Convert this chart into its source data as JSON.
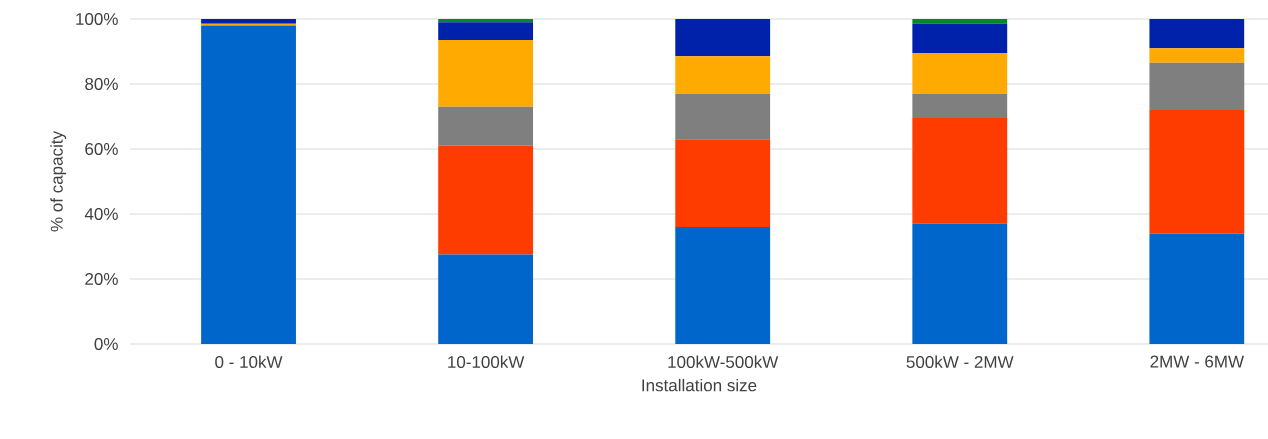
{
  "chart_data": {
    "type": "bar",
    "stacked": true,
    "xlabel": "Installation size",
    "ylabel": "% of capacity",
    "categories": [
      "0 - 10kW",
      "10-100kW",
      "100kW-500kW",
      "500kW - 2MW",
      "2MW - 6MW"
    ],
    "series": [
      {
        "color": "#0066cc",
        "values": [
          98,
          27.5,
          36,
          37,
          34
        ]
      },
      {
        "color": "#ff3c00",
        "values": [
          0,
          33.5,
          27,
          32.5,
          38
        ]
      },
      {
        "color": "#7f7f7f",
        "values": [
          0,
          12,
          14,
          7.5,
          14.5
        ]
      },
      {
        "color": "#ffaa00",
        "values": [
          0.5,
          20.5,
          11.5,
          12.5,
          4.5
        ]
      },
      {
        "color": "#0022aa",
        "values": [
          1.5,
          5.5,
          11.5,
          9,
          9
        ]
      },
      {
        "color": "#00882a",
        "values": [
          0,
          1,
          0,
          1.5,
          0
        ]
      }
    ],
    "ylim": [
      0,
      100
    ],
    "yticks": [
      {
        "value": 0,
        "label": "0%"
      },
      {
        "value": 20,
        "label": "20%"
      },
      {
        "value": 40,
        "label": "40%"
      },
      {
        "value": 60,
        "label": "60%"
      },
      {
        "value": 80,
        "label": "80%"
      },
      {
        "value": 100,
        "label": "100%"
      }
    ],
    "grid": "y"
  }
}
